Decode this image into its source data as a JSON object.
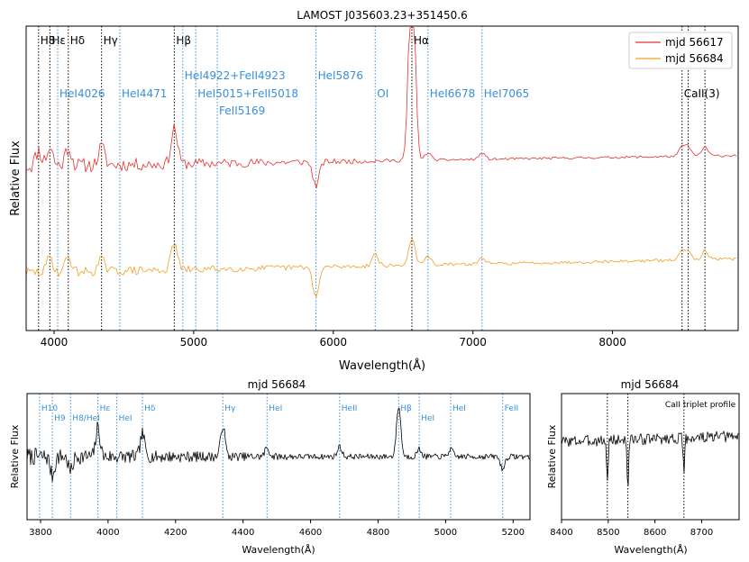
{
  "chart_data": [
    {
      "type": "line",
      "title": "LAMOST J035603.23+351450.6",
      "xlabel": "Wavelength(Å)",
      "ylabel": "Relative Flux",
      "xlim": [
        3800,
        8900
      ],
      "ylim": [
        0,
        10
      ],
      "xticks": [
        {
          "value": 4000,
          "label": "4000"
        },
        {
          "value": 5000,
          "label": "5000"
        },
        {
          "value": 6000,
          "label": "6000"
        },
        {
          "value": 7000,
          "label": "7000"
        },
        {
          "value": 8000,
          "label": "8000"
        }
      ],
      "legend_position": "top-right",
      "series": [
        {
          "name": "mjd 56617",
          "color": "#e8312d",
          "base": 5.4,
          "slope": 0.35,
          "noise_blue": 0.55,
          "noise_red": 0.08,
          "seed": 11,
          "features": [
            {
              "x": 3889,
              "depth": 0.5
            },
            {
              "x": 3970,
              "depth": 0.6
            },
            {
              "x": 4102,
              "depth": 0.6
            },
            {
              "x": 4340,
              "depth": 0.6
            },
            {
              "x": 4861,
              "depth": 1.2
            },
            {
              "x": 5876,
              "depth": -0.8
            },
            {
              "x": 6563,
              "depth": 7.0
            },
            {
              "x": 6678,
              "depth": 0.25
            },
            {
              "x": 7065,
              "depth": 0.2
            },
            {
              "x": 8498,
              "depth": 0.3
            },
            {
              "x": 8542,
              "depth": 0.3
            },
            {
              "x": 8662,
              "depth": 0.3
            }
          ]
        },
        {
          "name": "mjd 56684",
          "color": "#f0a020",
          "base": 1.9,
          "slope": 0.45,
          "noise_blue": 0.35,
          "noise_red": 0.1,
          "seed": 29,
          "features": [
            {
              "x": 3970,
              "depth": 0.5
            },
            {
              "x": 4102,
              "depth": 0.5
            },
            {
              "x": 4340,
              "depth": 0.4
            },
            {
              "x": 4861,
              "depth": 0.9
            },
            {
              "x": 5876,
              "depth": -1.0
            },
            {
              "x": 6300,
              "depth": 0.4
            },
            {
              "x": 6563,
              "depth": 0.9
            },
            {
              "x": 6678,
              "depth": 0.3
            },
            {
              "x": 7065,
              "depth": 0.2
            },
            {
              "x": 8498,
              "depth": 0.3
            },
            {
              "x": 8542,
              "depth": 0.3
            },
            {
              "x": 8662,
              "depth": 0.3
            }
          ]
        }
      ],
      "line_markers": [
        {
          "x": 3889,
          "label": "H8",
          "color": "#000000",
          "style": "dotted",
          "row": 0
        },
        {
          "x": 3970,
          "label": "Hε",
          "color": "#000000",
          "style": "dotted",
          "row": 0
        },
        {
          "x": 4102,
          "label": "Hδ",
          "color": "#000000",
          "style": "dotted",
          "row": 0
        },
        {
          "x": 4340,
          "label": "Hγ",
          "color": "#000000",
          "style": "dotted",
          "row": 0
        },
        {
          "x": 4861,
          "label": "Hβ",
          "color": "#000000",
          "style": "dotted",
          "row": 0
        },
        {
          "x": 6563,
          "label": "Hα",
          "color": "#000000",
          "style": "dotted",
          "row": 0
        },
        {
          "x": 4026,
          "label": "HeI4026",
          "color": "#3a90d8",
          "style": "dotted",
          "row": 3
        },
        {
          "x": 4471,
          "label": "HeI4471",
          "color": "#3a90d8",
          "style": "dotted",
          "row": 3
        },
        {
          "x": 4922,
          "label": "HeI4922+FeII4923",
          "color": "#3a90d8",
          "style": "dotted",
          "row": 2
        },
        {
          "x": 5015,
          "label": "HeI5015+FeII5018",
          "color": "#3a90d8",
          "style": "dotted",
          "row": 3
        },
        {
          "x": 5169,
          "label": "FeII5169",
          "color": "#3a90d8",
          "style": "dotted",
          "row": 4
        },
        {
          "x": 5876,
          "label": "HeI5876",
          "color": "#3a90d8",
          "style": "dotted",
          "row": 2
        },
        {
          "x": 6300,
          "label": "OI",
          "color": "#3a90d8",
          "style": "dotted",
          "row": 3
        },
        {
          "x": 6678,
          "label": "HeI6678",
          "color": "#3a90d8",
          "style": "dotted",
          "row": 3
        },
        {
          "x": 7065,
          "label": "HeI7065",
          "color": "#3a90d8",
          "style": "dotted",
          "row": 3
        },
        {
          "x": 8498,
          "label": "CaII(3)",
          "color": "#000000",
          "style": "dotted",
          "row": 3
        },
        {
          "x": 8542,
          "label": "",
          "color": "#000000",
          "style": "dotted",
          "row": 3
        },
        {
          "x": 8662,
          "label": "",
          "color": "#000000",
          "style": "dotted",
          "row": 3
        }
      ]
    },
    {
      "type": "line",
      "title": "mjd 56684",
      "xlabel": "Wavelength(Å)",
      "ylabel": "Relative Flux",
      "xlim": [
        3760,
        5250
      ],
      "ylim": [
        0,
        10
      ],
      "xticks": [
        {
          "value": 3800,
          "label": "3800"
        },
        {
          "value": 4000,
          "label": "4000"
        },
        {
          "value": 4200,
          "label": "4200"
        },
        {
          "value": 4400,
          "label": "4400"
        },
        {
          "value": 4600,
          "label": "4600"
        },
        {
          "value": 4800,
          "label": "4800"
        },
        {
          "value": 5000,
          "label": "5000"
        },
        {
          "value": 5200,
          "label": "5200"
        }
      ],
      "series": [
        {
          "name": "mjd 56684",
          "color": "#000000",
          "base": 5.0,
          "slope": 0.0,
          "noise_blue": 1.4,
          "noise_red": 0.45,
          "seed": 7,
          "features": [
            {
              "x": 3835,
              "depth": -1.5
            },
            {
              "x": 3889,
              "depth": -1.2
            },
            {
              "x": 3970,
              "depth": 2.3
            },
            {
              "x": 4102,
              "depth": 1.8
            },
            {
              "x": 4340,
              "depth": 2.5
            },
            {
              "x": 4471,
              "depth": 0.7
            },
            {
              "x": 4686,
              "depth": 0.8
            },
            {
              "x": 4861,
              "depth": 4.0
            },
            {
              "x": 4922,
              "depth": 0.6
            },
            {
              "x": 5015,
              "depth": 0.6
            },
            {
              "x": 5169,
              "depth": -1.0
            }
          ]
        }
      ],
      "line_markers": [
        {
          "x": 3797,
          "label": "H10",
          "color": "#3a90d8",
          "style": "dotted",
          "row": 0
        },
        {
          "x": 3835,
          "label": "H9",
          "color": "#3a90d8",
          "style": "dotted",
          "row": 1
        },
        {
          "x": 3889,
          "label": "H8/HeI",
          "color": "#3a90d8",
          "style": "dotted",
          "row": 1
        },
        {
          "x": 3970,
          "label": "Hε",
          "color": "#3a90d8",
          "style": "dotted",
          "row": 0
        },
        {
          "x": 4026,
          "label": "HeI",
          "color": "#3a90d8",
          "style": "dotted",
          "row": 1
        },
        {
          "x": 4102,
          "label": "Hδ",
          "color": "#3a90d8",
          "style": "dotted",
          "row": 0
        },
        {
          "x": 4340,
          "label": "Hγ",
          "color": "#3a90d8",
          "style": "dotted",
          "row": 0
        },
        {
          "x": 4471,
          "label": "HeI",
          "color": "#3a90d8",
          "style": "dotted",
          "row": 0
        },
        {
          "x": 4686,
          "label": "HeII",
          "color": "#3a90d8",
          "style": "dotted",
          "row": 0
        },
        {
          "x": 4861,
          "label": "Hβ",
          "color": "#3a90d8",
          "style": "dotted",
          "row": 0
        },
        {
          "x": 4922,
          "label": "HeI",
          "color": "#3a90d8",
          "style": "dotted",
          "row": 1
        },
        {
          "x": 5015,
          "label": "HeI",
          "color": "#3a90d8",
          "style": "dotted",
          "row": 0
        },
        {
          "x": 5169,
          "label": "FeII",
          "color": "#3a90d8",
          "style": "dotted",
          "row": 0
        }
      ]
    },
    {
      "type": "line",
      "title": "mjd 56684",
      "annotation": "CaII triplet profile",
      "xlabel": "Wavelength(Å)",
      "ylabel": "Relative Flux",
      "xlim": [
        8400,
        8780
      ],
      "ylim": [
        0,
        10
      ],
      "xticks": [
        {
          "value": 8400,
          "label": "8400"
        },
        {
          "value": 8500,
          "label": "8500"
        },
        {
          "value": 8600,
          "label": "8600"
        },
        {
          "value": 8700,
          "label": "8700"
        }
      ],
      "series": [
        {
          "name": "mjd 56684",
          "color": "#000000",
          "base": 6.2,
          "slope": 0.4,
          "noise_blue": 0.9,
          "noise_red": 0.9,
          "seed": 3,
          "features": [
            {
              "x": 8498,
              "depth": -3.5
            },
            {
              "x": 8542,
              "depth": -3.8
            },
            {
              "x": 8662,
              "depth": -3.0
            }
          ]
        }
      ],
      "line_markers": [
        {
          "x": 8498,
          "label": "",
          "color": "#000000",
          "style": "dotted",
          "row": 0
        },
        {
          "x": 8542,
          "label": "",
          "color": "#000000",
          "style": "dotted",
          "row": 0
        },
        {
          "x": 8662,
          "label": "",
          "color": "#000000",
          "style": "dotted",
          "row": 0
        }
      ]
    }
  ]
}
